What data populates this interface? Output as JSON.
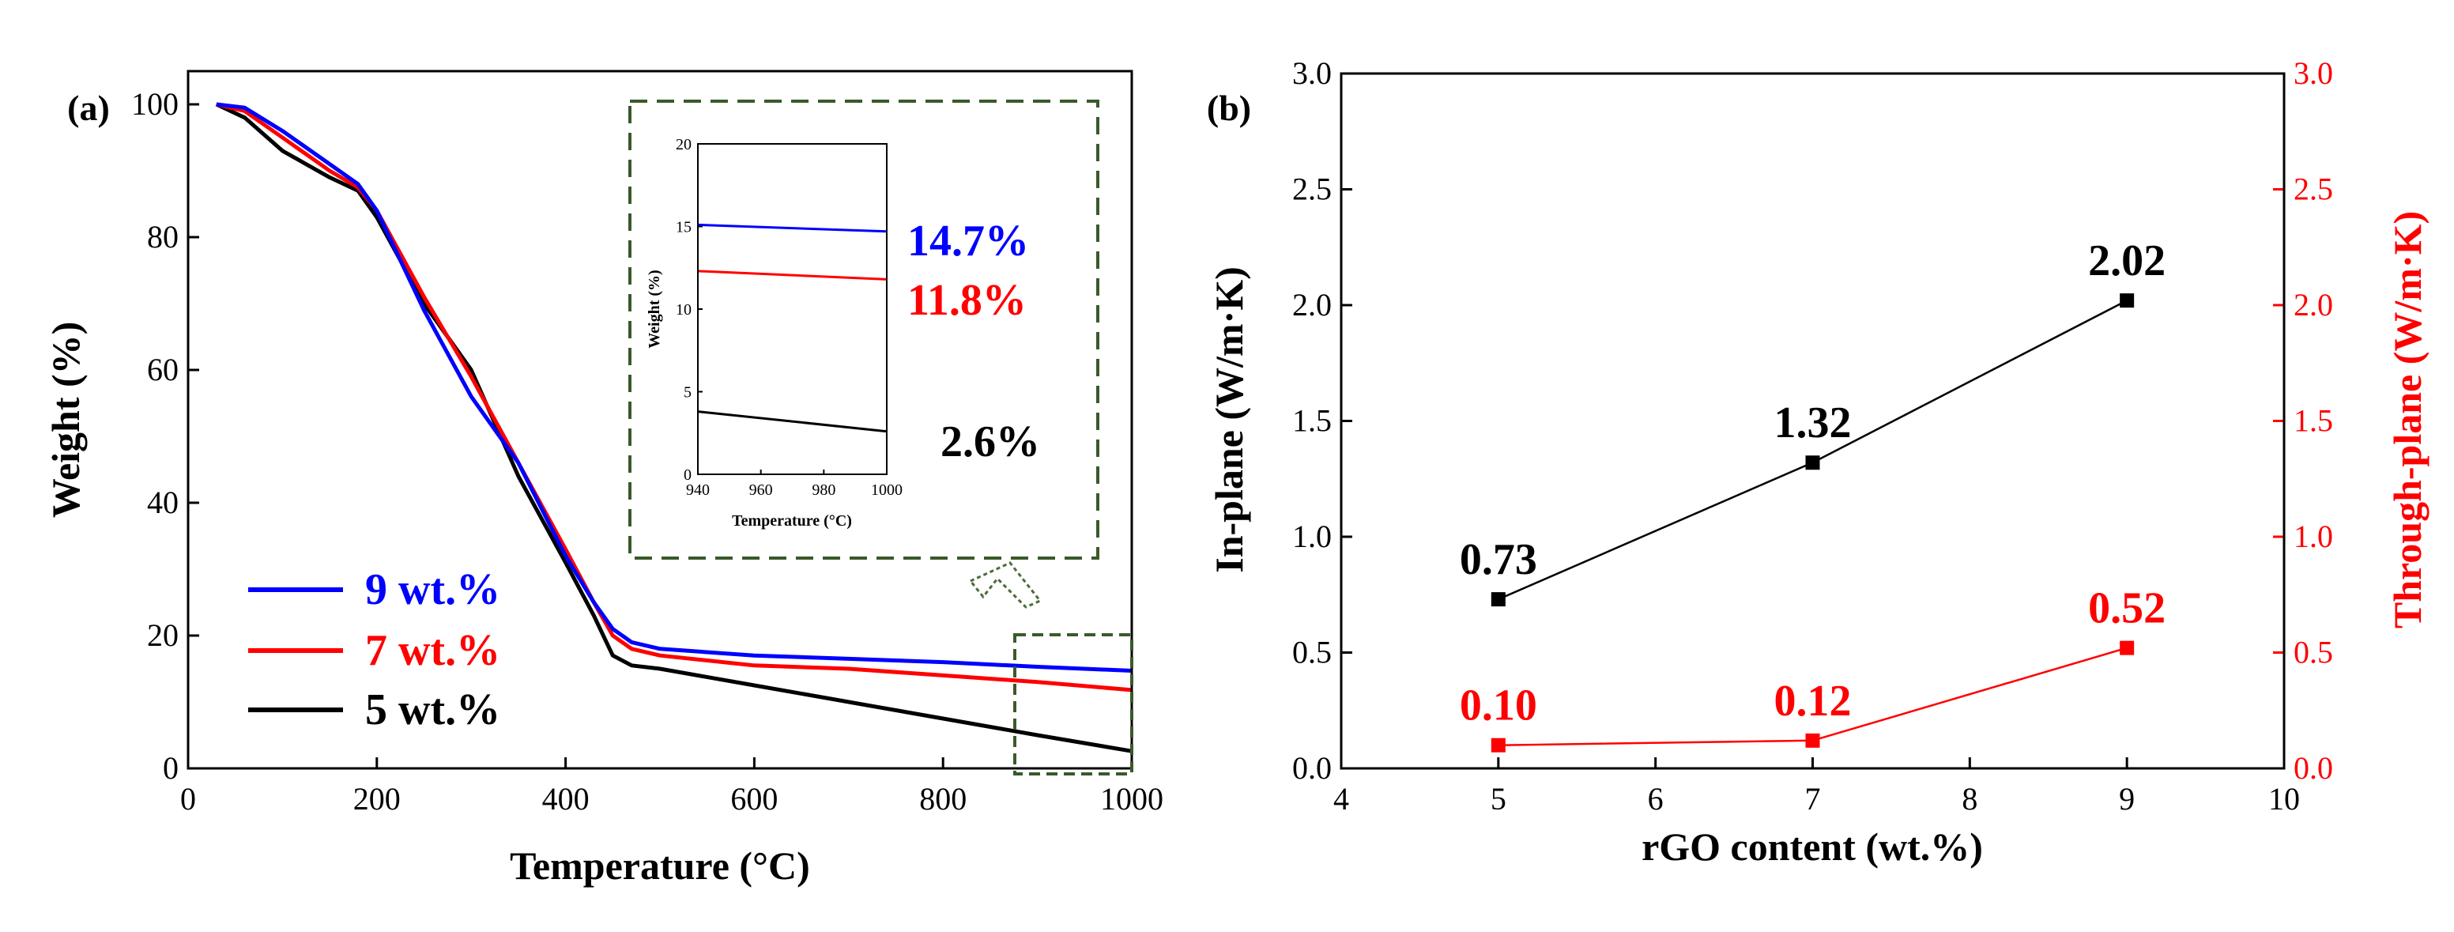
{
  "chart_data": [
    {
      "type": "line",
      "panel_label": "(a)",
      "xlabel": "Temperature (°C)",
      "ylabel": "Weight (%)",
      "xlim": [
        0,
        1000
      ],
      "ylim": [
        0,
        105
      ],
      "xticks": [
        "0",
        "200",
        "400",
        "600",
        "800",
        "1000"
      ],
      "yticks": [
        "0",
        "20",
        "40",
        "60",
        "80",
        "100"
      ],
      "legend_position": "bottom-left",
      "series": [
        {
          "name": "9 wt.%",
          "color": "#0000ff",
          "x": [
            30,
            60,
            100,
            150,
            180,
            200,
            250,
            300,
            350,
            400,
            430,
            450,
            470,
            500,
            600,
            700,
            800,
            900,
            1000
          ],
          "y": [
            100,
            99.5,
            96,
            91,
            88,
            84,
            69,
            56,
            46,
            32,
            25,
            21,
            19,
            18,
            17,
            16.5,
            16,
            15.3,
            14.7
          ]
        },
        {
          "name": "7 wt.%",
          "color": "#ff0000",
          "x": [
            30,
            60,
            100,
            150,
            180,
            200,
            250,
            300,
            350,
            400,
            430,
            450,
            470,
            500,
            600,
            700,
            800,
            900,
            1000
          ],
          "y": [
            100,
            99,
            95,
            90,
            87.5,
            84,
            71,
            59,
            46,
            33,
            25,
            20,
            18,
            17,
            15.5,
            15,
            14,
            13,
            11.8
          ]
        },
        {
          "name": "5 wt.%",
          "color": "#000000",
          "x": [
            30,
            60,
            100,
            150,
            180,
            200,
            250,
            300,
            350,
            400,
            430,
            450,
            470,
            500,
            600,
            700,
            800,
            900,
            1000
          ],
          "y": [
            100,
            98,
            93,
            89,
            87,
            83,
            70,
            60,
            44,
            31,
            23,
            17,
            15.5,
            15,
            12.5,
            10,
            7.5,
            5,
            2.6
          ]
        }
      ],
      "zoom_box": {
        "x": [
          880,
          1000
        ],
        "y": [
          0,
          20
        ]
      },
      "inset": {
        "xlabel": "Temperature (°C)",
        "ylabel": "Weight (%)",
        "xlim": [
          940,
          1000
        ],
        "ylim": [
          0,
          20
        ],
        "xticks": [
          "940",
          "960",
          "980",
          "1000"
        ],
        "yticks": [
          "0",
          "5",
          "10",
          "15",
          "20"
        ],
        "series": [
          {
            "name": "9 wt.%",
            "color": "#0000ff",
            "x": [
              940,
              1000
            ],
            "y": [
              15.1,
              14.7
            ]
          },
          {
            "name": "7 wt.%",
            "color": "#ff0000",
            "x": [
              940,
              1000
            ],
            "y": [
              12.3,
              11.8
            ]
          },
          {
            "name": "5 wt.%",
            "color": "#000000",
            "x": [
              940,
              1000
            ],
            "y": [
              3.8,
              2.6
            ]
          }
        ],
        "callouts": [
          {
            "text": "14.7%",
            "color": "#0000ff"
          },
          {
            "text": "11.8%",
            "color": "#ff0000"
          },
          {
            "text": "2.6%",
            "color": "#000000"
          }
        ]
      }
    },
    {
      "type": "line",
      "panel_label": "(b)",
      "xlabel": "rGO content (wt.%)",
      "ylabel": "In-plane (W/m·K)",
      "ylabel_right": "Through-plane (W/m·K)",
      "xlim": [
        4,
        10
      ],
      "ylim": [
        0,
        3
      ],
      "ylim_right": [
        0,
        3
      ],
      "xticks": [
        "4",
        "5",
        "6",
        "7",
        "8",
        "9",
        "10"
      ],
      "yticks": [
        "0.0",
        "0.5",
        "1.0",
        "1.5",
        "2.0",
        "2.5",
        "3.0"
      ],
      "yticks_right": [
        "0.0",
        "0.5",
        "1.0",
        "1.5",
        "2.0",
        "2.5",
        "3.0"
      ],
      "series": [
        {
          "name": "In-plane",
          "color": "#000000",
          "axis": "left",
          "x": [
            5,
            7,
            9
          ],
          "y": [
            0.73,
            1.32,
            2.02
          ],
          "labels": [
            "0.73",
            "1.32",
            "2.02"
          ]
        },
        {
          "name": "Through-plane",
          "color": "#ff0000",
          "axis": "right",
          "x": [
            5,
            7,
            9
          ],
          "y": [
            0.1,
            0.12,
            0.52
          ],
          "labels": [
            "0.10",
            "0.12",
            "0.52"
          ]
        }
      ]
    }
  ]
}
